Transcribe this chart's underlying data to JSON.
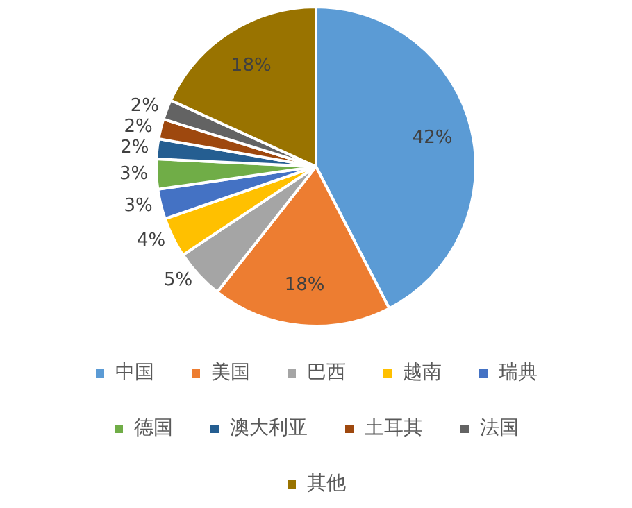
{
  "chart_data": {
    "type": "pie",
    "categories": [
      "中国",
      "美国",
      "巴西",
      "越南",
      "瑞典",
      "德国",
      "澳大利亚",
      "土耳其",
      "法国",
      "其他"
    ],
    "values": [
      42,
      18,
      5,
      4,
      3,
      3,
      2,
      2,
      2,
      18
    ],
    "colors": [
      "#5b9bd5",
      "#ed7d31",
      "#a5a5a5",
      "#ffc000",
      "#4472c4",
      "#70ad47",
      "#255e91",
      "#9e480e",
      "#636363",
      "#997300"
    ],
    "value_labels": [
      "42%",
      "18%",
      "5%",
      "4%",
      "3%",
      "3%",
      "2%",
      "2%",
      "2%",
      "18%"
    ],
    "legend": "bottom"
  }
}
